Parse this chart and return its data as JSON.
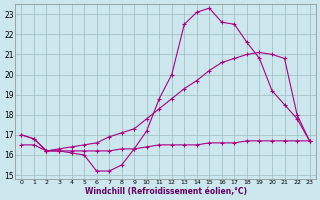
{
  "title": "",
  "xlabel": "Windchill (Refroidissement éolien,°C)",
  "bg_color": "#cce8ee",
  "grid_color": "#99bbbb",
  "line_color": "#aa0088",
  "xlim": [
    -0.5,
    23.5
  ],
  "ylim": [
    14.8,
    23.5
  ],
  "yticks": [
    15,
    16,
    17,
    18,
    19,
    20,
    21,
    22,
    23
  ],
  "xticks": [
    0,
    1,
    2,
    3,
    4,
    5,
    6,
    7,
    8,
    9,
    10,
    11,
    12,
    13,
    14,
    15,
    16,
    17,
    18,
    19,
    20,
    21,
    22,
    23
  ],
  "series1_x": [
    0,
    1,
    2,
    3,
    4,
    5,
    6,
    7,
    8,
    9,
    10,
    11,
    12,
    13,
    14,
    15,
    16,
    17,
    18,
    19,
    20,
    21,
    22,
    23
  ],
  "series1_y": [
    17.0,
    16.8,
    16.2,
    16.2,
    16.1,
    16.0,
    15.2,
    15.2,
    15.5,
    16.3,
    17.2,
    18.8,
    20.0,
    22.5,
    23.1,
    23.3,
    22.6,
    22.5,
    21.6,
    20.8,
    19.2,
    18.5,
    17.8,
    16.7
  ],
  "series2_x": [
    0,
    1,
    2,
    3,
    4,
    5,
    6,
    7,
    8,
    9,
    10,
    11,
    12,
    13,
    14,
    15,
    16,
    17,
    18,
    19,
    20,
    21,
    22,
    23
  ],
  "series2_y": [
    17.0,
    16.8,
    16.2,
    16.3,
    16.4,
    16.5,
    16.6,
    16.9,
    17.1,
    17.3,
    17.8,
    18.3,
    18.8,
    19.3,
    19.7,
    20.2,
    20.6,
    20.8,
    21.0,
    21.1,
    21.0,
    20.8,
    18.0,
    16.7
  ],
  "series3_x": [
    0,
    1,
    2,
    3,
    4,
    5,
    6,
    7,
    8,
    9,
    10,
    11,
    12,
    13,
    14,
    15,
    16,
    17,
    18,
    19,
    20,
    21,
    22,
    23
  ],
  "series3_y": [
    16.5,
    16.5,
    16.2,
    16.2,
    16.2,
    16.2,
    16.2,
    16.2,
    16.3,
    16.3,
    16.4,
    16.5,
    16.5,
    16.5,
    16.5,
    16.6,
    16.6,
    16.6,
    16.7,
    16.7,
    16.7,
    16.7,
    16.7,
    16.7
  ]
}
